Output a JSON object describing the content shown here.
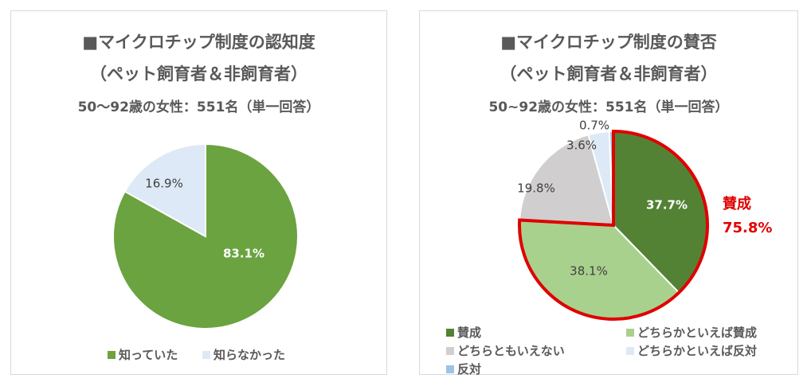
{
  "colors": {
    "dark_green": "#548235",
    "green": "#6aa33f",
    "light_green": "#a9d18e",
    "gray": "#d0cece",
    "pale_blue": "#dde9f6",
    "blue": "#9dc3e6",
    "highlight_red": "#e00000"
  },
  "chart_data": [
    {
      "type": "pie",
      "title": "■マイクロチップ制度の認知度",
      "subtitle": "（ペット飼育者＆非飼育者）",
      "subtitle2": "50～92歳の女性：551名（単一回答）",
      "slices": [
        {
          "label": "知っていた",
          "value": 83.1,
          "display": "83.1%",
          "color": "#6aa33f"
        },
        {
          "label": "知らなかった",
          "value": 16.9,
          "display": "16.9%",
          "color": "#dde9f6"
        }
      ],
      "legend": [
        "知っていた",
        "知らなかった"
      ]
    },
    {
      "type": "pie",
      "title": "■マイクロチップ制度の賛否",
      "subtitle": "（ペット飼育者＆非飼育者）",
      "subtitle2": "50~92歳の女性：551名（単一回答）",
      "slices": [
        {
          "label": "賛成",
          "value": 37.7,
          "display": "37.7%",
          "color": "#548235"
        },
        {
          "label": "どちらかといえば賛成",
          "value": 38.1,
          "display": "38.1%",
          "color": "#a9d18e"
        },
        {
          "label": "どちらともいえない",
          "value": 19.8,
          "display": "19.8%",
          "color": "#d0cece"
        },
        {
          "label": "どちらかといえば反対",
          "value": 3.6,
          "display": "3.6%",
          "color": "#dde9f6"
        },
        {
          "label": "反対",
          "value": 0.7,
          "display": "0.7%",
          "color": "#9dc3e6"
        }
      ],
      "annotation": {
        "label": "賛成",
        "value": "75.8%"
      },
      "legend": [
        "賛成",
        "どちらかといえば賛成",
        "どちらともいえない",
        "どちらかといえば反対",
        "反対"
      ]
    }
  ]
}
